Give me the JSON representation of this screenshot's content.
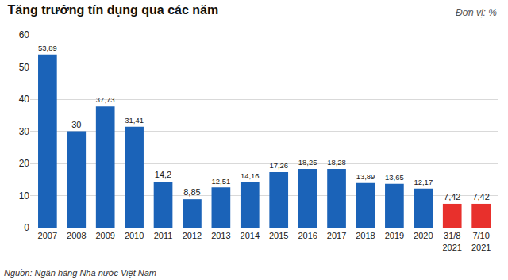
{
  "chart_data": {
    "type": "bar",
    "title": "Tăng trưởng tín dụng qua các năm",
    "subtitle": "Đơn vị: %",
    "annotations": [
      "Nguồn: Ngân hàng Nhà nước Việt Nam"
    ],
    "categories": [
      "2007",
      "2008",
      "2009",
      "2010",
      "2011",
      "2012",
      "2013",
      "2014",
      "2015",
      "2016",
      "2017",
      "2018",
      "2019",
      "2020",
      "31/8 2021",
      "7/10 2021"
    ],
    "values": [
      53.89,
      30,
      37.73,
      31.41,
      14.2,
      8.85,
      12.51,
      14.16,
      17.26,
      18.25,
      18.28,
      13.89,
      13.65,
      12.17,
      7.42,
      7.42
    ],
    "value_labels": [
      "53,89",
      "30",
      "37,73",
      "31,41",
      "14,2",
      "8,85",
      "12,51",
      "14,16",
      "17,26",
      "18,25",
      "18,28",
      "13,89",
      "13,65",
      "12,17",
      "7,42",
      "7,42"
    ],
    "colors": [
      "#1b63b8",
      "#1b63b8",
      "#1b63b8",
      "#1b63b8",
      "#1b63b8",
      "#1b63b8",
      "#1b63b8",
      "#1b63b8",
      "#1b63b8",
      "#1b63b8",
      "#1b63b8",
      "#1b63b8",
      "#1b63b8",
      "#1b63b8",
      "#e8302c",
      "#e8302c"
    ],
    "ylim": [
      0,
      60
    ],
    "yticks": [
      0,
      10,
      20,
      30,
      40,
      50,
      60
    ],
    "grid": true,
    "data_labels": true
  }
}
